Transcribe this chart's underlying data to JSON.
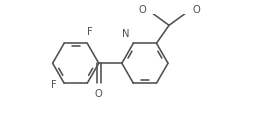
{
  "bg_color": "#ffffff",
  "line_color": "#505050",
  "label_color": "#505050",
  "line_width": 1.15,
  "font_size": 7.2,
  "fig_width": 2.61,
  "fig_height": 1.38,
  "dpi": 100,
  "xlim": [
    -2.6,
    1.9
  ],
  "ylim": [
    -1.05,
    0.85
  ]
}
